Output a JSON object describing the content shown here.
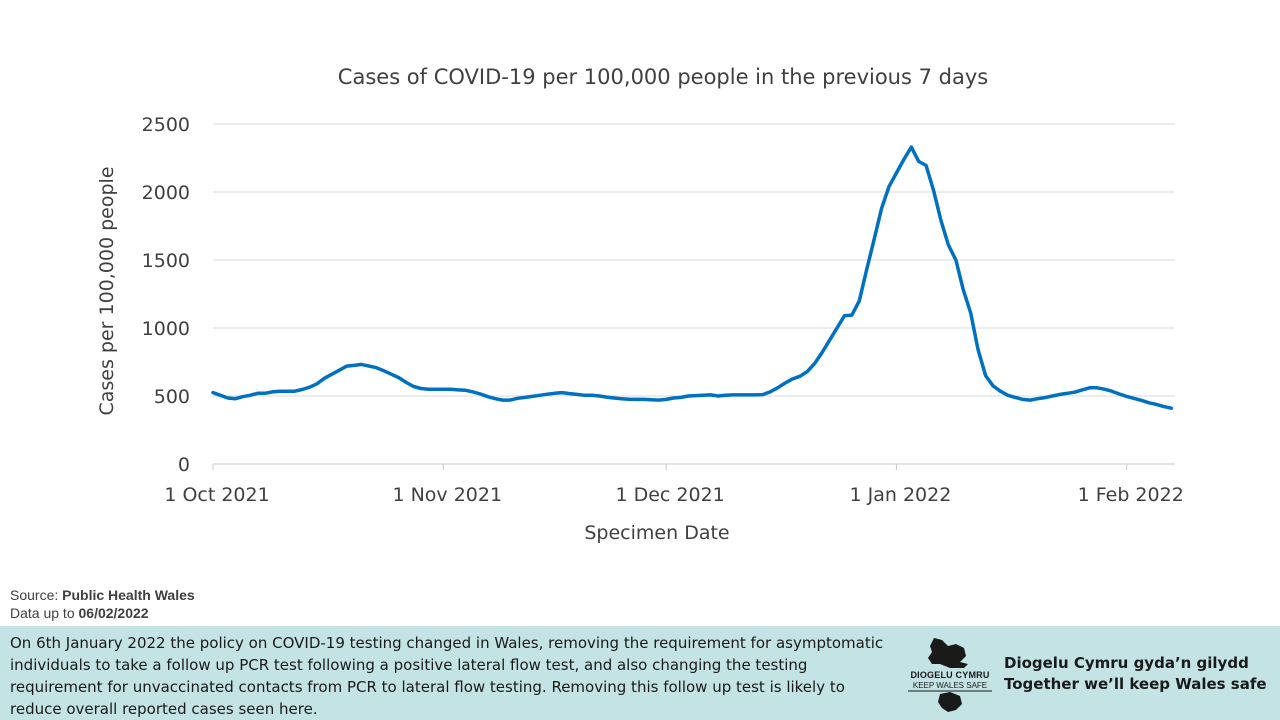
{
  "chart_data": {
    "type": "line",
    "title": "Cases of COVID-19 per 100,000 people in the previous 7 days",
    "xlabel": "Specimen Date",
    "ylabel": "Cases per 100,000 people",
    "ylim": [
      0,
      2500
    ],
    "yticks": [
      0,
      500,
      1000,
      1500,
      2000,
      2500
    ],
    "x_start": "2021-10-01",
    "xticks": [
      {
        "day": 0,
        "label": "1 Oct 2021"
      },
      {
        "day": 31,
        "label": "1 Nov 2021"
      },
      {
        "day": 61,
        "label": "1 Dec 2021"
      },
      {
        "day": 92,
        "label": "1 Jan 2022"
      },
      {
        "day": 123,
        "label": "1 Feb 2022"
      }
    ],
    "grid": true,
    "color": "#0070c0",
    "series": [
      {
        "name": "Cases per 100,000 people",
        "points": [
          [
            0,
            525
          ],
          [
            1,
            505
          ],
          [
            2,
            485
          ],
          [
            3,
            480
          ],
          [
            4,
            495
          ],
          [
            5,
            505
          ],
          [
            6,
            520
          ],
          [
            7,
            520
          ],
          [
            8,
            530
          ],
          [
            9,
            535
          ],
          [
            10,
            535
          ],
          [
            11,
            535
          ],
          [
            12,
            548
          ],
          [
            13,
            565
          ],
          [
            14,
            590
          ],
          [
            15,
            630
          ],
          [
            16,
            660
          ],
          [
            17,
            690
          ],
          [
            18,
            720
          ],
          [
            19,
            725
          ],
          [
            20,
            732
          ],
          [
            21,
            720
          ],
          [
            22,
            708
          ],
          [
            23,
            685
          ],
          [
            24,
            660
          ],
          [
            25,
            635
          ],
          [
            26,
            600
          ],
          [
            27,
            570
          ],
          [
            28,
            555
          ],
          [
            29,
            550
          ],
          [
            30,
            550
          ],
          [
            31,
            550
          ],
          [
            32,
            550
          ],
          [
            33,
            545
          ],
          [
            34,
            542
          ],
          [
            35,
            530
          ],
          [
            36,
            515
          ],
          [
            37,
            495
          ],
          [
            38,
            480
          ],
          [
            39,
            470
          ],
          [
            40,
            470
          ],
          [
            41,
            483
          ],
          [
            42,
            490
          ],
          [
            43,
            497
          ],
          [
            44,
            505
          ],
          [
            45,
            513
          ],
          [
            46,
            520
          ],
          [
            47,
            525
          ],
          [
            48,
            518
          ],
          [
            49,
            512
          ],
          [
            50,
            505
          ],
          [
            51,
            505
          ],
          [
            52,
            500
          ],
          [
            53,
            492
          ],
          [
            54,
            485
          ],
          [
            55,
            480
          ],
          [
            56,
            476
          ],
          [
            57,
            475
          ],
          [
            58,
            475
          ],
          [
            59,
            472
          ],
          [
            60,
            470
          ],
          [
            61,
            475
          ],
          [
            62,
            485
          ],
          [
            63,
            490
          ],
          [
            64,
            500
          ],
          [
            65,
            503
          ],
          [
            66,
            506
          ],
          [
            67,
            508
          ],
          [
            68,
            500
          ],
          [
            69,
            505
          ],
          [
            70,
            508
          ],
          [
            71,
            508
          ],
          [
            72,
            508
          ],
          [
            73,
            508
          ],
          [
            74,
            510
          ],
          [
            75,
            530
          ],
          [
            76,
            560
          ],
          [
            77,
            595
          ],
          [
            78,
            625
          ],
          [
            79,
            645
          ],
          [
            80,
            680
          ],
          [
            81,
            740
          ],
          [
            82,
            820
          ],
          [
            83,
            910
          ],
          [
            84,
            1000
          ],
          [
            85,
            1090
          ],
          [
            86,
            1095
          ],
          [
            87,
            1200
          ],
          [
            88,
            1430
          ],
          [
            89,
            1650
          ],
          [
            90,
            1880
          ],
          [
            91,
            2040
          ],
          [
            92,
            2140
          ],
          [
            93,
            2240
          ],
          [
            94,
            2330
          ],
          [
            95,
            2225
          ],
          [
            96,
            2195
          ],
          [
            97,
            2010
          ],
          [
            98,
            1790
          ],
          [
            99,
            1610
          ],
          [
            100,
            1500
          ],
          [
            101,
            1280
          ],
          [
            102,
            1110
          ],
          [
            103,
            840
          ],
          [
            104,
            650
          ],
          [
            105,
            575
          ],
          [
            106,
            535
          ],
          [
            107,
            505
          ],
          [
            108,
            490
          ],
          [
            109,
            475
          ],
          [
            110,
            470
          ],
          [
            111,
            480
          ],
          [
            112,
            488
          ],
          [
            113,
            500
          ],
          [
            114,
            512
          ],
          [
            115,
            520
          ],
          [
            116,
            528
          ],
          [
            117,
            545
          ],
          [
            118,
            560
          ],
          [
            119,
            560
          ],
          [
            120,
            550
          ],
          [
            121,
            535
          ],
          [
            122,
            515
          ],
          [
            123,
            497
          ],
          [
            124,
            482
          ],
          [
            125,
            468
          ],
          [
            126,
            450
          ],
          [
            127,
            438
          ],
          [
            128,
            422
          ],
          [
            129,
            410
          ]
        ]
      }
    ]
  },
  "source": {
    "label": "Source: ",
    "value": "Public Health Wales",
    "data_label": "Data up to ",
    "data_date": "06/02/2022"
  },
  "notice": {
    "text": "On 6th January 2022 the policy on COVID-19 testing changed in Wales, removing the requirement for asymptomatic individuals to take a follow up PCR test following a positive lateral flow test, and also changing the testing requirement for unvaccinated contacts from PCR to lateral flow testing. Removing this follow up test is likely to reduce overall reported cases seen here.",
    "logo_line1": "DIOGELU CYMRU",
    "logo_line2": "KEEP WALES SAFE",
    "tagline_welsh": "Diogelu Cymru gyda’n gilydd",
    "tagline_english": "Together we’ll keep Wales safe"
  }
}
